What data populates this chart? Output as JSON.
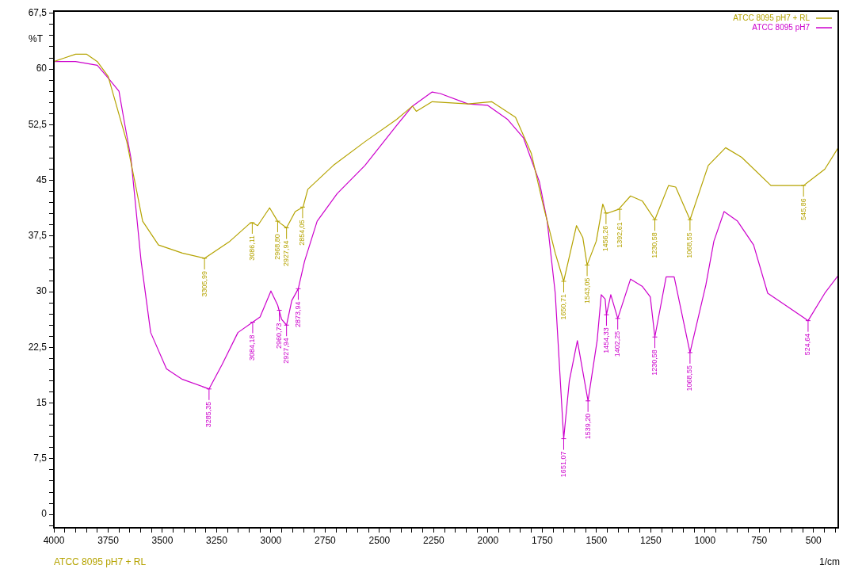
{
  "chart_data": {
    "type": "line",
    "xlabel": "1/cm",
    "ylabel": "%T",
    "xlim": [
      4000,
      386
    ],
    "ylim": [
      -1.8,
      67.8
    ],
    "xticks": [
      4000,
      {
        "value": 3950,
        "label": null
      },
      {
        "value": 3900,
        "label": null
      },
      {
        "value": 3850,
        "label": null
      },
      {
        "value": 3800,
        "label": null
      },
      3750,
      {
        "value": 3700,
        "label": null
      },
      {
        "value": 3650,
        "label": null
      },
      {
        "value": 3600,
        "label": null
      },
      {
        "value": 3550,
        "label": null
      },
      3500,
      {
        "value": 3450,
        "label": null
      },
      {
        "value": 3400,
        "label": null
      },
      {
        "value": 3350,
        "label": null
      },
      {
        "value": 3300,
        "label": null
      },
      3250,
      {
        "value": 3200,
        "label": null
      },
      {
        "value": 3150,
        "label": null
      },
      {
        "value": 3100,
        "label": null
      },
      {
        "value": 3050,
        "label": null
      },
      3000,
      {
        "value": 2950,
        "label": null
      },
      {
        "value": 2900,
        "label": null
      },
      {
        "value": 2850,
        "label": null
      },
      {
        "value": 2800,
        "label": null
      },
      2750,
      {
        "value": 2700,
        "label": null
      },
      {
        "value": 2650,
        "label": null
      },
      {
        "value": 2600,
        "label": null
      },
      {
        "value": 2550,
        "label": null
      },
      2500,
      {
        "value": 2450,
        "label": null
      },
      {
        "value": 2400,
        "label": null
      },
      {
        "value": 2350,
        "label": null
      },
      {
        "value": 2300,
        "label": null
      },
      2250,
      {
        "value": 2200,
        "label": null
      },
      {
        "value": 2150,
        "label": null
      },
      {
        "value": 2100,
        "label": null
      },
      {
        "value": 2050,
        "label": null
      },
      2000,
      {
        "value": 1950,
        "label": null
      },
      {
        "value": 1900,
        "label": null
      },
      {
        "value": 1850,
        "label": null
      },
      {
        "value": 1800,
        "label": null
      },
      1750,
      {
        "value": 1700,
        "label": null
      },
      {
        "value": 1650,
        "label": null
      },
      {
        "value": 1600,
        "label": null
      },
      {
        "value": 1550,
        "label": null
      },
      1500,
      {
        "value": 1450,
        "label": null
      },
      {
        "value": 1400,
        "label": null
      },
      {
        "value": 1350,
        "label": null
      },
      {
        "value": 1300,
        "label": null
      },
      1250,
      {
        "value": 1200,
        "label": null
      },
      {
        "value": 1150,
        "label": null
      },
      {
        "value": 1100,
        "label": null
      },
      {
        "value": 1050,
        "label": null
      },
      1000,
      {
        "value": 950,
        "label": null
      },
      {
        "value": 900,
        "label": null
      },
      {
        "value": 850,
        "label": null
      },
      {
        "value": 800,
        "label": null
      },
      750,
      {
        "value": 700,
        "label": null
      },
      {
        "value": 650,
        "label": null
      },
      {
        "value": 600,
        "label": null
      },
      {
        "value": 550,
        "label": null
      },
      500,
      {
        "value": 450,
        "label": null
      },
      {
        "value": 400,
        "label": null
      }
    ],
    "yticks": [
      {
        "value": -1.5,
        "label": null
      },
      0,
      {
        "value": 1.5,
        "label": null
      },
      {
        "value": 3,
        "label": null
      },
      {
        "value": 4.5,
        "label": null
      },
      {
        "value": 6,
        "label": null
      },
      {
        "value": 7.5,
        "label": "7,5"
      },
      {
        "value": 9,
        "label": null
      },
      {
        "value": 10.5,
        "label": null
      },
      {
        "value": 12,
        "label": null
      },
      {
        "value": 13.5,
        "label": null
      },
      15,
      {
        "value": 16.5,
        "label": null
      },
      {
        "value": 18,
        "label": null
      },
      {
        "value": 19.5,
        "label": null
      },
      {
        "value": 21,
        "label": null
      },
      {
        "value": 22.5,
        "label": "22,5"
      },
      {
        "value": 24,
        "label": null
      },
      {
        "value": 25.5,
        "label": null
      },
      {
        "value": 27,
        "label": null
      },
      {
        "value": 28.5,
        "label": null
      },
      30,
      {
        "value": 31.5,
        "label": null
      },
      {
        "value": 33,
        "label": null
      },
      {
        "value": 34.5,
        "label": null
      },
      {
        "value": 36,
        "label": null
      },
      {
        "value": 37.5,
        "label": "37,5"
      },
      {
        "value": 39,
        "label": null
      },
      {
        "value": 40.5,
        "label": null
      },
      {
        "value": 42,
        "label": null
      },
      {
        "value": 43.5,
        "label": null
      },
      45,
      {
        "value": 46.5,
        "label": null
      },
      {
        "value": 48,
        "label": null
      },
      {
        "value": 49.5,
        "label": null
      },
      {
        "value": 51,
        "label": null
      },
      {
        "value": 52.5,
        "label": "52,5"
      },
      {
        "value": 54,
        "label": null
      },
      {
        "value": 55.5,
        "label": null
      },
      {
        "value": 57,
        "label": null
      },
      {
        "value": 58.5,
        "label": null
      },
      60,
      {
        "value": 61.5,
        "label": null
      },
      {
        "value": 63,
        "label": null
      },
      {
        "value": 64.5,
        "label": null
      },
      {
        "value": 66,
        "label": null
      },
      {
        "value": 67.5,
        "label": "67,5"
      }
    ],
    "grid": false,
    "legend": "top right",
    "marker": "none",
    "line_style": "solid",
    "series": [
      {
        "name": "ATCC 8095 pH7 + RL",
        "color": "#b5a300",
        "x": [
          4000,
          3950,
          3900,
          3850,
          3800,
          3750,
          3664,
          3627,
          3591,
          3518,
          3408,
          3306,
          3189,
          3097,
          3086,
          3061,
          3006,
          2969,
          2928,
          2888,
          2852,
          2830,
          2713,
          2567,
          2421,
          2348,
          2330,
          2257,
          2092,
          1983,
          1873,
          1800,
          1745,
          1690,
          1651,
          1592,
          1563,
          1543,
          1501,
          1471,
          1456,
          1446,
          1398,
          1343,
          1288,
          1231,
          1168,
          1135,
          1069,
          985,
          905,
          831,
          696,
          546,
          448,
          386
        ],
        "values": [
          61,
          61.5,
          62,
          62,
          61,
          59,
          50.2,
          44.8,
          39.5,
          36.3,
          35.2,
          34.5,
          36.8,
          39.2,
          39.3,
          38.9,
          41.3,
          39.5,
          38.6,
          40.8,
          41.4,
          43.8,
          47,
          50.2,
          53.2,
          55,
          54.3,
          55.6,
          55.3,
          55.6,
          53.5,
          48.6,
          41.6,
          35.2,
          31.4,
          38.9,
          37.3,
          33.6,
          36.8,
          41.8,
          40.6,
          40.6,
          41.1,
          42.9,
          42.2,
          39.7,
          44.3,
          44.1,
          39.7,
          47,
          49.4,
          48.1,
          44.3,
          44.3,
          46.5,
          49.4
        ]
      },
      {
        "name": "ATCC 8095 pH7",
        "color": "#cc00cc",
        "x": [
          4000,
          3900,
          3800,
          3750,
          3700,
          3675,
          3645,
          3598,
          3554,
          3481,
          3408,
          3285,
          3225,
          3152,
          3084,
          3050,
          3000,
          2969,
          2951,
          2928,
          2904,
          2874,
          2845,
          2787,
          2695,
          2567,
          2421,
          2348,
          2257,
          2220,
          2092,
          2001,
          1909,
          1836,
          1763,
          1727,
          1690,
          1651,
          1625,
          1588,
          1539,
          1497,
          1478,
          1460,
          1454,
          1434,
          1402,
          1343,
          1288,
          1252,
          1231,
          1179,
          1142,
          1069,
          996,
          959,
          912,
          850,
          776,
          711,
          630,
          525,
          448,
          386
        ],
        "values": [
          61,
          61,
          60.5,
          58.8,
          57,
          52.8,
          48,
          34.1,
          24.5,
          19.6,
          18.2,
          16.9,
          20.2,
          24.5,
          25.9,
          26.6,
          30.1,
          28.2,
          26.3,
          25.5,
          28.8,
          30.4,
          34.1,
          39.5,
          43.2,
          47,
          52.4,
          55,
          56.9,
          56.7,
          55.3,
          55.1,
          53.2,
          50.7,
          44.8,
          39.5,
          29.8,
          10.2,
          18,
          23.4,
          15.3,
          23.4,
          29.6,
          29,
          26.9,
          29.6,
          26.4,
          31.7,
          30.7,
          29.3,
          23.9,
          32,
          32,
          21.8,
          30.9,
          36.8,
          40.8,
          39.5,
          36.3,
          29.8,
          28.2,
          26.1,
          29.8,
          32.2
        ]
      }
    ],
    "annotations": [
      {
        "text": "3305,99",
        "x": 3306,
        "y": 34.5
      },
      {
        "text": "3086,11",
        "x": 3086,
        "y": 39.3
      },
      {
        "text": "2968,80",
        "x": 2969,
        "y": 39.5
      },
      {
        "text": "2927,94",
        "x": 2928,
        "y": 38.6
      },
      {
        "text": "2854,05",
        "x": 2854,
        "y": 41.4
      },
      {
        "text": "1650,71",
        "x": 1651,
        "y": 31.4
      },
      {
        "text": "1543,05",
        "x": 1543,
        "y": 33.6
      },
      {
        "text": "1456,26",
        "x": 1456,
        "y": 40.6
      },
      {
        "text": "1392,61",
        "x": 1393,
        "y": 41.1
      },
      {
        "text": "1230,58",
        "x": 1231,
        "y": 39.7
      },
      {
        "text": "1068,55",
        "x": 1069,
        "y": 39.7
      },
      {
        "text": "545,86",
        "x": 546,
        "y": 44.3
      },
      {
        "text": "3285,35",
        "x": 3285,
        "y": 16.9
      },
      {
        "text": "3084,18",
        "x": 3084,
        "y": 25.9
      },
      {
        "text": "2960,73",
        "x": 2961,
        "y": 27.5
      },
      {
        "text": "2927,94",
        "x": 2928,
        "y": 25.5
      },
      {
        "text": "2873,94",
        "x": 2874,
        "y": 30.4
      },
      {
        "text": "1651,07",
        "x": 1651,
        "y": 10.2
      },
      {
        "text": "1539,20",
        "x": 1539,
        "y": 15.3
      },
      {
        "text": "1454,33",
        "x": 1454,
        "y": 26.9
      },
      {
        "text": "1402,25",
        "x": 1402,
        "y": 26.4
      },
      {
        "text": "1230,58",
        "x": 1231,
        "y": 23.9
      },
      {
        "text": "1068,55",
        "x": 1069,
        "y": 21.8
      },
      {
        "text": "524,64",
        "x": 525,
        "y": 26.1
      },
      "ATCC 8095 pH7 + RL"
    ]
  }
}
